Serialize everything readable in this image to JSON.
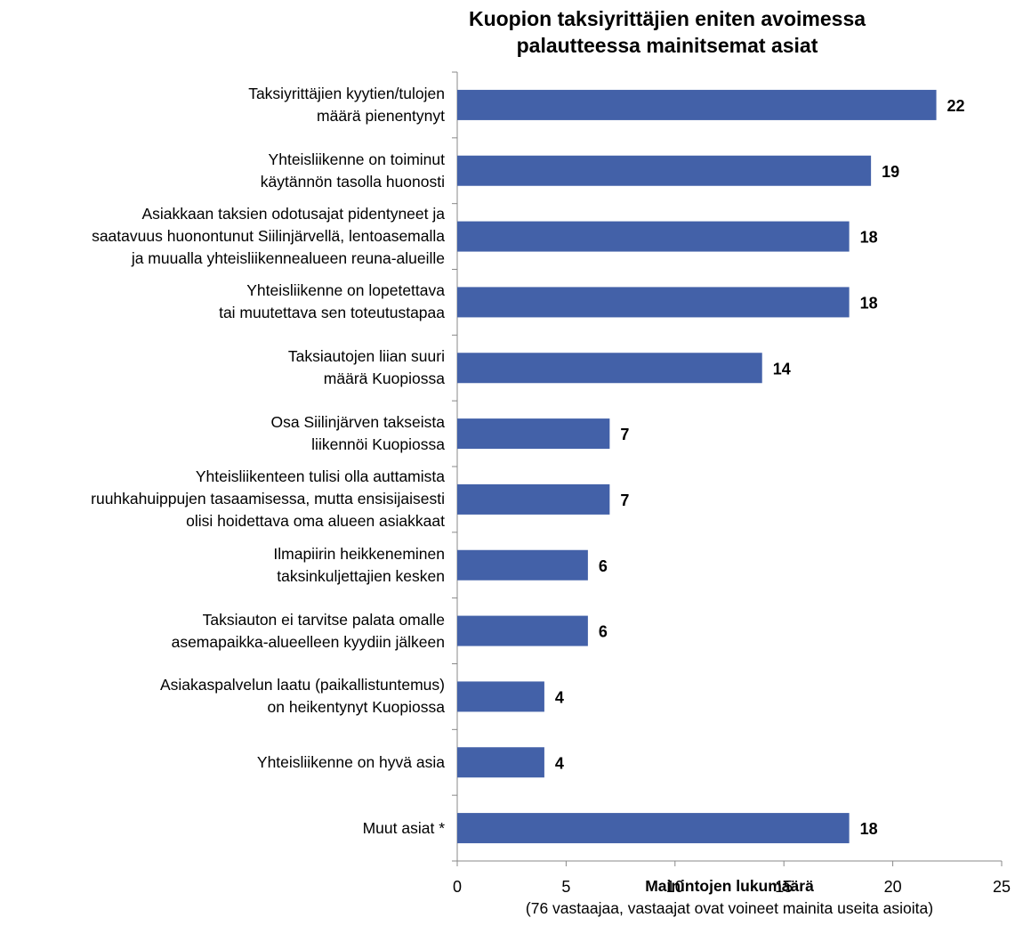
{
  "chart_data": {
    "type": "bar",
    "orientation": "horizontal",
    "title_lines": [
      "Kuopion taksiyrittäjien eniten avoimessa",
      "palautteessa mainitsemat asiat"
    ],
    "xlabel": "Mainintojen lukumäärä",
    "xlabel_note": "(76 vastaajaa, vastaajat ovat voineet mainita useita asioita)",
    "ylabel": "",
    "xlim": [
      0,
      25
    ],
    "xticks": [
      0,
      5,
      10,
      15,
      20,
      25
    ],
    "categories": [
      "Taksiyrittäjien kyytien/tulojen\nmäärä pienentynyt",
      "Yhteisliikenne on toiminut\nkäytännön tasolla huonosti",
      "Asiakkaan taksien odotusajat pidentyneet ja\nsaatavuus huonontunut Siilinjärvellä, lentoasemalla\nja muualla yhteisliikennealueen reuna-alueille",
      "Yhteisliikenne on lopetettava\ntai muutettava sen toteutustapaa",
      "Taksiautojen liian suuri\nmäärä Kuopiossa",
      "Osa Siilinjärven takseista\nliikennöi Kuopiossa",
      "Yhteisliikenteen tulisi olla auttamista\nruuhkahuippujen tasaamisessa, mutta ensisijaisesti\nolisi hoidettava oma alueen asiakkaat",
      "Ilmapiirin heikkeneminen\ntaksinkuljettajien kesken",
      "Taksiauton ei tarvitse palata omalle\nasemapaikka-alueelleen kyydiin jälkeen",
      "Asiakaspalvelun laatu (paikallistuntemus)\non heikentynyt Kuopiossa",
      "Yhteisliikenne on hyvä asia",
      "Muut asiat *"
    ],
    "values": [
      22,
      19,
      18,
      18,
      14,
      7,
      7,
      6,
      6,
      4,
      4,
      18
    ],
    "data_labels": true,
    "grid": false,
    "bar_color": "#4361A8"
  }
}
